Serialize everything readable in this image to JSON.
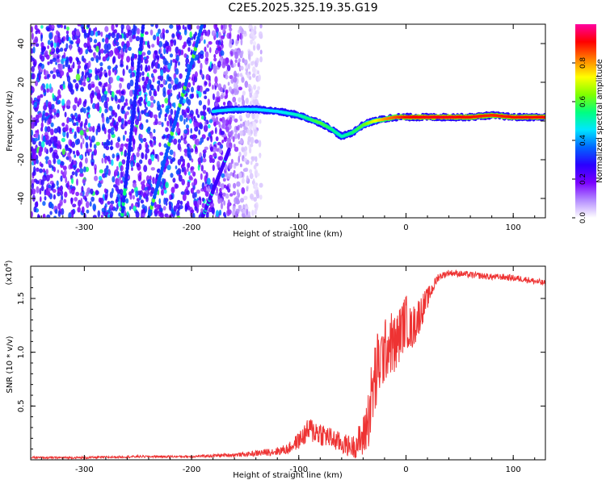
{
  "figure": {
    "title": "C2E5.2025.325.19.35.G19"
  },
  "chart_data": [
    {
      "id": "spectrogram",
      "type": "heatmap",
      "title": "C2E5.2025.325.19.35.G19",
      "xlabel": "Height of straight line (km)",
      "ylabel": "Frequency (Hz)",
      "xlim": [
        -350,
        130
      ],
      "ylim": [
        -50,
        50
      ],
      "xticks": [
        -300,
        -200,
        -100,
        0,
        100
      ],
      "yticks": [
        -40,
        -20,
        0,
        20,
        40
      ],
      "colorbar": {
        "label": "Normalized spectral amplitude",
        "range": [
          0,
          1
        ],
        "ticks": [
          0.0,
          0.2,
          0.4,
          0.6,
          0.8
        ],
        "tick_labels": [
          "0.0",
          "0.2",
          "0.4",
          "0.6",
          "0.8"
        ],
        "colormap": [
          "#ffffff",
          "#b48cff",
          "#7a00ff",
          "#2a00ff",
          "#0066ff",
          "#00e6ff",
          "#00ff80",
          "#80ff00",
          "#ffff00",
          "#ff8000",
          "#ff0000",
          "#ff00a0"
        ]
      },
      "noise_region_x": [
        -350,
        -135
      ],
      "noise_amplitude": 0.12,
      "tone_curve": {
        "x": [
          -180,
          -160,
          -140,
          -120,
          -100,
          -90,
          -80,
          -70,
          -60,
          -50,
          -40,
          -30,
          -20,
          -10,
          0,
          20,
          40,
          60,
          80,
          100,
          130
        ],
        "y": [
          5,
          6,
          6,
          5,
          3,
          1,
          -1,
          -4,
          -8,
          -6,
          -2,
          0,
          1,
          2,
          2,
          2,
          2,
          2,
          3,
          2,
          2
        ],
        "amplitude": [
          0.45,
          0.45,
          0.45,
          0.45,
          0.5,
          0.55,
          0.6,
          0.55,
          0.5,
          0.55,
          0.6,
          0.7,
          0.8,
          0.85,
          0.9,
          0.92,
          0.92,
          0.9,
          0.88,
          0.9,
          0.9
        ]
      },
      "diagonal_streaks": [
        {
          "x": [
            -265,
            -245
          ],
          "y": [
            -50,
            50
          ],
          "amplitude": 0.3
        },
        {
          "x": [
            -240,
            -190
          ],
          "y": [
            -50,
            50
          ],
          "amplitude": 0.35
        },
        {
          "x": [
            -190,
            -165
          ],
          "y": [
            -50,
            -15
          ],
          "amplitude": 0.25
        }
      ]
    },
    {
      "id": "snr",
      "type": "line",
      "xlabel": "Height of straight line (km)",
      "ylabel": "SNR (10 * v/v)",
      "y_scale_label": "(x10",
      "y_scale_exponent": "4",
      "y_scale_close": ")",
      "xlim": [
        -350,
        130
      ],
      "ylim": [
        0,
        1.8
      ],
      "xticks": [
        -300,
        -200,
        -100,
        0,
        100
      ],
      "yticks": [
        0.5,
        1.0,
        1.5
      ],
      "ytick_labels": [
        "0.5",
        "1.0",
        "1.5"
      ],
      "series": [
        {
          "name": "SNR",
          "color": "#ee3333",
          "x": [
            -350,
            -300,
            -250,
            -200,
            -150,
            -120,
            -110,
            -100,
            -90,
            -80,
            -70,
            -60,
            -50,
            -40,
            -35,
            -30,
            -25,
            -20,
            -15,
            -10,
            -5,
            0,
            5,
            10,
            15,
            20,
            25,
            30,
            35,
            40,
            50,
            60,
            70,
            80,
            90,
            100,
            110,
            120,
            130
          ],
          "y": [
            0.02,
            0.02,
            0.03,
            0.03,
            0.05,
            0.08,
            0.1,
            0.18,
            0.28,
            0.25,
            0.2,
            0.15,
            0.12,
            0.2,
            0.4,
            0.7,
            0.9,
            1.0,
            1.1,
            1.05,
            1.2,
            1.3,
            1.2,
            1.3,
            1.4,
            1.5,
            1.6,
            1.7,
            1.72,
            1.74,
            1.73,
            1.72,
            1.71,
            1.7,
            1.7,
            1.69,
            1.68,
            1.66,
            1.64
          ],
          "noise": [
            0.01,
            0.01,
            0.01,
            0.01,
            0.02,
            0.04,
            0.05,
            0.08,
            0.12,
            0.12,
            0.1,
            0.1,
            0.1,
            0.2,
            0.3,
            0.4,
            0.35,
            0.3,
            0.3,
            0.3,
            0.25,
            0.25,
            0.2,
            0.2,
            0.15,
            0.1,
            0.06,
            0.04,
            0.03,
            0.03,
            0.03,
            0.03,
            0.03,
            0.03,
            0.03,
            0.03,
            0.03,
            0.03,
            0.03
          ]
        }
      ]
    }
  ]
}
